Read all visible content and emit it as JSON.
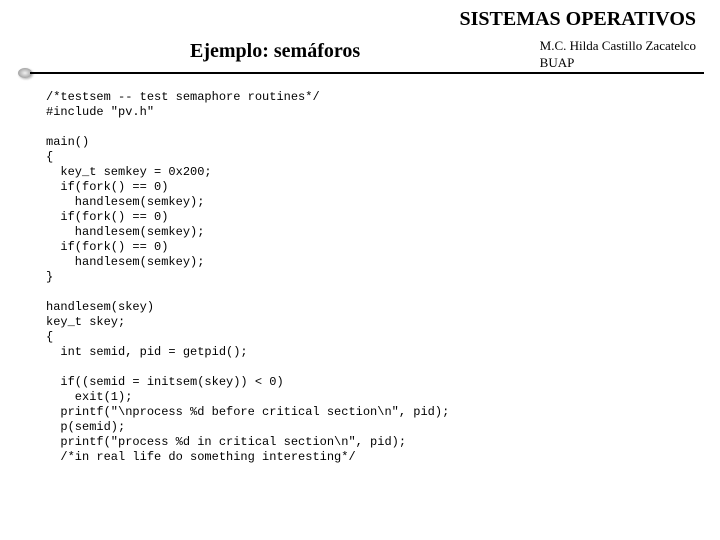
{
  "header": {
    "title": "SISTEMAS OPERATIVOS"
  },
  "slide": {
    "title": "Ejemplo: semáforos"
  },
  "author": {
    "line1": "M.C. Hilda Castillo Zacatelco",
    "line2": "BUAP"
  },
  "code": {
    "text": "/*testsem -- test semaphore routines*/\n#include \"pv.h\"\n\nmain()\n{\n  key_t semkey = 0x200;\n  if(fork() == 0)\n    handlesem(semkey);\n  if(fork() == 0)\n    handlesem(semkey);\n  if(fork() == 0)\n    handlesem(semkey);\n}\n\nhandlesem(skey)\nkey_t skey;\n{\n  int semid, pid = getpid();\n\n  if((semid = initsem(skey)) < 0)\n    exit(1);\n  printf(\"\\nprocess %d before critical section\\n\", pid);\n  p(semid);\n  printf(\"process %d in critical section\\n\", pid);\n  /*in real life do something interesting*/"
  }
}
